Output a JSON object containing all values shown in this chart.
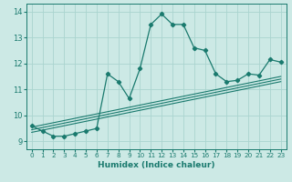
{
  "xlabel": "Humidex (Indice chaleur)",
  "bg_color": "#cce9e5",
  "line_color": "#1a7a6e",
  "grid_color": "#aad4cf",
  "xlim": [
    -0.5,
    23.5
  ],
  "ylim": [
    8.7,
    14.3
  ],
  "xticks": [
    0,
    1,
    2,
    3,
    4,
    5,
    6,
    7,
    8,
    9,
    10,
    11,
    12,
    13,
    14,
    15,
    16,
    17,
    18,
    19,
    20,
    21,
    22,
    23
  ],
  "yticks": [
    9,
    10,
    11,
    12,
    13,
    14
  ],
  "main_x": [
    0,
    1,
    2,
    3,
    4,
    5,
    6,
    7,
    8,
    9,
    10,
    11,
    12,
    13,
    14,
    15,
    16,
    17,
    18,
    19,
    20,
    21,
    22,
    23
  ],
  "main_y": [
    9.6,
    9.4,
    9.2,
    9.2,
    9.3,
    9.4,
    9.5,
    11.6,
    11.3,
    10.65,
    11.8,
    13.5,
    13.9,
    13.5,
    13.5,
    12.6,
    12.5,
    11.6,
    11.3,
    11.35,
    11.6,
    11.55,
    12.15,
    12.05
  ],
  "ref_lines": [
    {
      "x0": 0,
      "y0": 9.35,
      "x1": 23,
      "y1": 11.3
    },
    {
      "x0": 0,
      "y0": 9.45,
      "x1": 23,
      "y1": 11.4
    },
    {
      "x0": 0,
      "y0": 9.55,
      "x1": 23,
      "y1": 11.5
    }
  ]
}
